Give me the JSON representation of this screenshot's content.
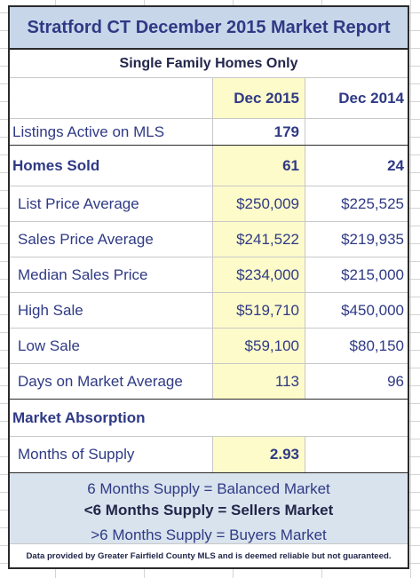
{
  "report": {
    "title": "Stratford CT December 2015 Market Report",
    "subtitle": "Single Family Homes Only",
    "columns": [
      "Dec 2015",
      "Dec 2014"
    ],
    "listings": {
      "label": "Listings Active on MLS",
      "dec2015": "179",
      "dec2014": ""
    },
    "homes_sold": {
      "label": "Homes Sold",
      "dec2015": "61",
      "dec2014": "24"
    },
    "metrics": [
      {
        "label": "List Price Average",
        "dec2015": "$250,009",
        "dec2014": "$225,525"
      },
      {
        "label": "Sales Price Average",
        "dec2015": "$241,522",
        "dec2014": "$219,935"
      },
      {
        "label": "Median Sales Price",
        "dec2015": "$234,000",
        "dec2014": "$215,000"
      },
      {
        "label": "High Sale",
        "dec2015": "$519,710",
        "dec2014": "$450,000"
      },
      {
        "label": "Low Sale",
        "dec2015": "$59,100",
        "dec2014": "$80,150"
      },
      {
        "label": "Days on Market Average",
        "dec2015": "113",
        "dec2014": "96"
      }
    ],
    "absorption": {
      "heading": "Market Absorption",
      "label": "Months of Supply",
      "dec2015": "2.93",
      "dec2014": ""
    },
    "legend": [
      "6 Months Supply = Balanced Market",
      "<6 Months Supply = Sellers Market",
      ">6 Months Supply = Buyers Market"
    ],
    "disclaimer": "Data provided by Greater Fairfield County MLS and is deemed reliable but not guaranteed."
  },
  "colors": {
    "title_bg": "#c8d6ea",
    "highlight": "#fdfbc9",
    "legend_bg": "#d9e3ee",
    "text": "#2f3a85"
  }
}
